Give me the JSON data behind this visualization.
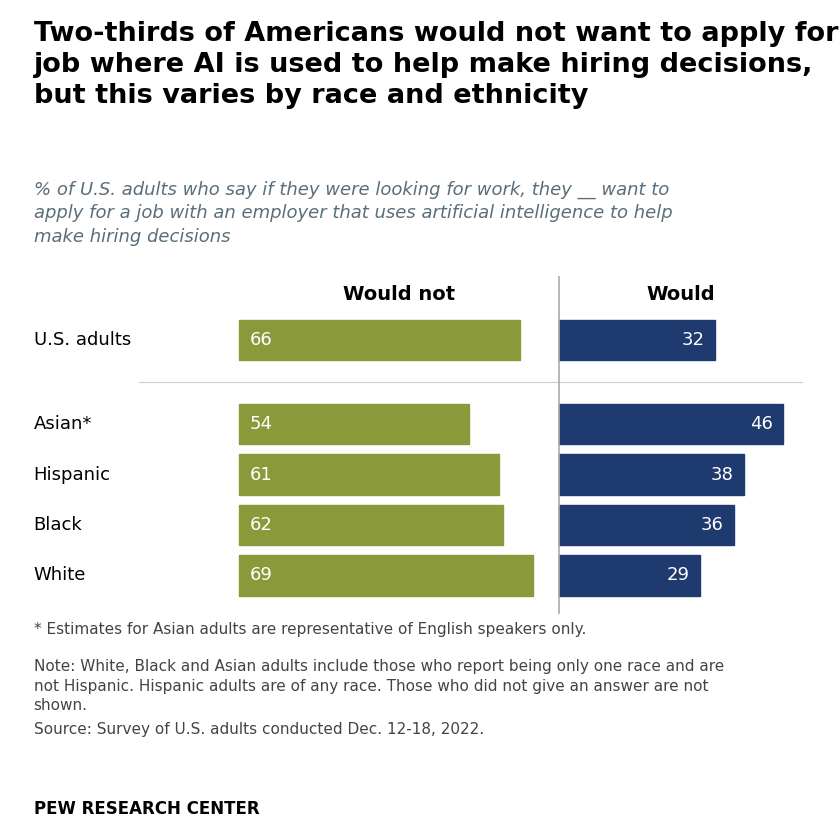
{
  "title_line1": "Two-thirds of Americans would not want to apply for a",
  "title_line2": "job where AI is used to help make hiring decisions,",
  "title_line3": "but this varies by race and ethnicity",
  "subtitle": "% of U.S. adults who say if they were looking for work, they __ want to\napply for a job with an employer that uses artificial intelligence to help\nmake hiring decisions",
  "categories": [
    "U.S. adults",
    "Asian*",
    "Hispanic",
    "Black",
    "White"
  ],
  "would_not": [
    66,
    54,
    61,
    62,
    69
  ],
  "would": [
    32,
    46,
    38,
    36,
    29
  ],
  "color_would_not": "#8a9a3a",
  "color_would": "#1f3a6e",
  "col_header_would_not": "Would not",
  "col_header_would": "Would",
  "footnote1": "* Estimates for Asian adults are representative of English speakers only.",
  "footnote2": "Note: White, Black and Asian adults include those who report being only one race and are\nnot Hispanic. Hispanic adults are of any race. Those who did not give an answer are not\nshown.",
  "footnote3": "Source: Survey of U.S. adults conducted Dec. 12-18, 2022.",
  "source_label": "PEW RESEARCH CENTER",
  "background_color": "#ffffff",
  "text_color": "#000000",
  "subtitle_color": "#5a6e7a",
  "footnote_color": "#444444"
}
